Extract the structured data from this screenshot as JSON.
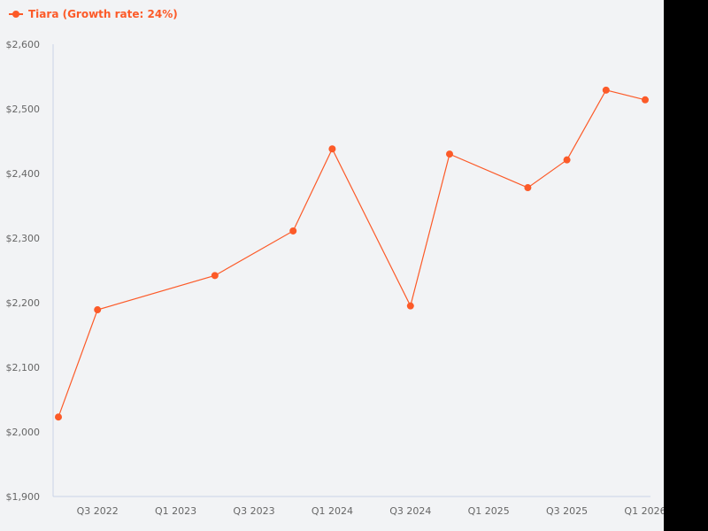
{
  "chart_data": {
    "type": "line",
    "title": "",
    "legend": [
      {
        "name": "Tiara (Growth rate: 24%)",
        "color": "#fc5a28"
      }
    ],
    "legend_position": "top-left",
    "xlabel": "",
    "ylabel": "",
    "x_tick_labels": [
      "Q3 2022",
      "Q1 2023",
      "Q3 2023",
      "Q1 2024",
      "Q3 2024",
      "Q1 2025",
      "Q3 2025",
      "Q1 2026"
    ],
    "y_tick_labels": [
      "$1,900",
      "$2,000",
      "$2,100",
      "$2,200",
      "$2,300",
      "$2,400",
      "$2,500",
      "$2,600"
    ],
    "ylim": [
      1900,
      2600
    ],
    "grid": false,
    "series": [
      {
        "name": "Tiara (Growth rate: 24%)",
        "color": "#fc5a28",
        "x": [
          "Q2 2022",
          "Q3 2022",
          "Q2 2023",
          "Q4 2023",
          "Q1 2024",
          "Q3 2024",
          "Q4 2024",
          "Q2 2025",
          "Q3 2025",
          "Q4 2025",
          "Q1 2026"
        ],
        "values": [
          2023,
          2189,
          2242,
          2311,
          2438,
          2195,
          2430,
          2378,
          2421,
          2529,
          2514
        ]
      }
    ]
  }
}
